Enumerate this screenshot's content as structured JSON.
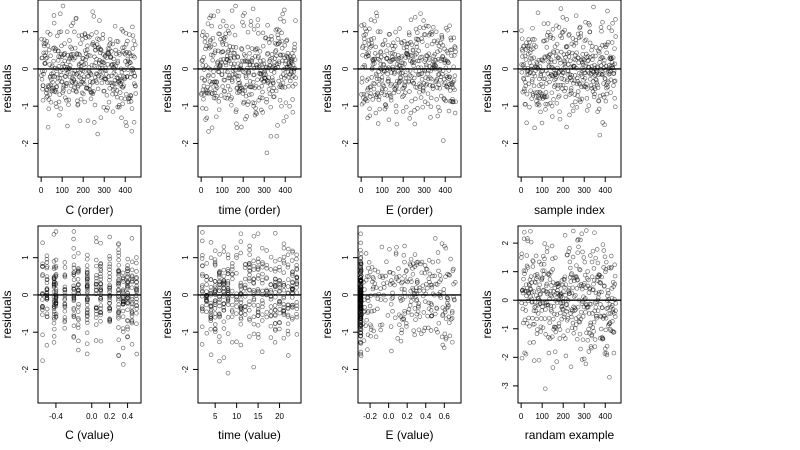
{
  "chart_data": [
    {
      "type": "scatter",
      "xlabel": "C (order)",
      "ylabel": "residuals",
      "xlim": [
        -15,
        475
      ],
      "ylim": [
        -2.9,
        1.85
      ],
      "xticks": [
        0,
        100,
        200,
        300,
        400
      ],
      "yticks": [
        -2,
        -1,
        0,
        1
      ],
      "hline": 0,
      "n": 450,
      "x_kind": "index",
      "seed": 11
    },
    {
      "type": "scatter",
      "xlabel": "time (order)",
      "ylabel": "residuals",
      "xlim": [
        -15,
        475
      ],
      "ylim": [
        -2.9,
        1.85
      ],
      "xticks": [
        0,
        100,
        200,
        300,
        400
      ],
      "yticks": [
        -2,
        -1,
        0,
        1
      ],
      "hline": 0,
      "n": 450,
      "x_kind": "index",
      "seed": 23
    },
    {
      "type": "scatter",
      "xlabel": "E (order)",
      "ylabel": "residuals",
      "xlim": [
        -15,
        475
      ],
      "ylim": [
        -2.9,
        1.85
      ],
      "xticks": [
        0,
        100,
        200,
        300,
        400
      ],
      "yticks": [
        -2,
        -1,
        0,
        1
      ],
      "hline": 0,
      "n": 450,
      "x_kind": "index",
      "seed": 37
    },
    {
      "type": "scatter",
      "xlabel": "sample index",
      "ylabel": "residuals",
      "xlim": [
        -15,
        475
      ],
      "ylim": [
        -2.9,
        1.85
      ],
      "xticks": [
        0,
        100,
        200,
        300,
        400
      ],
      "yticks": [
        -2,
        -1,
        0,
        1
      ],
      "hline": 0,
      "n": 450,
      "x_kind": "index",
      "seed": 41
    },
    {
      "type": "scatter",
      "xlabel": "C (value)",
      "ylabel": "residuals",
      "xlim": [
        -0.6,
        0.55
      ],
      "ylim": [
        -2.9,
        1.85
      ],
      "xticks": [
        -0.4,
        0.0,
        0.2,
        0.4
      ],
      "xtick_labels": [
        "-0.4",
        "0.0",
        "0.2",
        "0.4"
      ],
      "yticks": [
        -2,
        -1,
        0,
        1
      ],
      "hline": 0,
      "n": 450,
      "x_kind": "discrete",
      "x_levels": [
        -0.55,
        -0.5,
        -0.42,
        -0.4,
        -0.3,
        -0.2,
        -0.15,
        -0.05,
        0.05,
        0.1,
        0.2,
        0.3,
        0.35,
        0.4,
        0.45,
        0.5
      ],
      "seed": 53
    },
    {
      "type": "scatter",
      "xlabel": "time (value)",
      "ylabel": "residuals",
      "xlim": [
        1,
        25
      ],
      "ylim": [
        -2.9,
        1.85
      ],
      "xticks": [
        5,
        10,
        15,
        20
      ],
      "yticks": [
        -2,
        -1,
        0,
        1
      ],
      "hline": 0,
      "n": 450,
      "x_kind": "discrete",
      "x_levels": [
        2,
        3,
        4,
        5,
        6,
        7,
        8,
        9,
        10,
        11,
        12,
        13,
        14,
        15,
        16,
        17,
        18,
        19,
        20,
        21,
        22,
        23,
        24
      ],
      "seed": 67
    },
    {
      "type": "scatter",
      "xlabel": "E (value)",
      "ylabel": "residuals",
      "xlim": [
        -0.33,
        0.78
      ],
      "ylim": [
        -2.9,
        1.85
      ],
      "xticks": [
        -0.2,
        0.0,
        0.2,
        0.4,
        0.6
      ],
      "xtick_labels": [
        "-0.2",
        "0.0",
        "0.2",
        "0.4",
        "0.6"
      ],
      "yticks": [
        -2,
        -1,
        0,
        1
      ],
      "hline": 0,
      "n": 450,
      "x_kind": "skewed",
      "seed": 79
    },
    {
      "type": "scatter",
      "xlabel": "randam example",
      "ylabel": "residuals",
      "xlim": [
        -15,
        475
      ],
      "ylim": [
        -3.6,
        2.6
      ],
      "xticks": [
        0,
        100,
        200,
        300,
        400
      ],
      "yticks": [
        -3,
        -2,
        -1,
        0,
        1,
        2
      ],
      "hline": 0,
      "n": 450,
      "x_kind": "index",
      "spread": "wide",
      "seed": 97
    }
  ]
}
